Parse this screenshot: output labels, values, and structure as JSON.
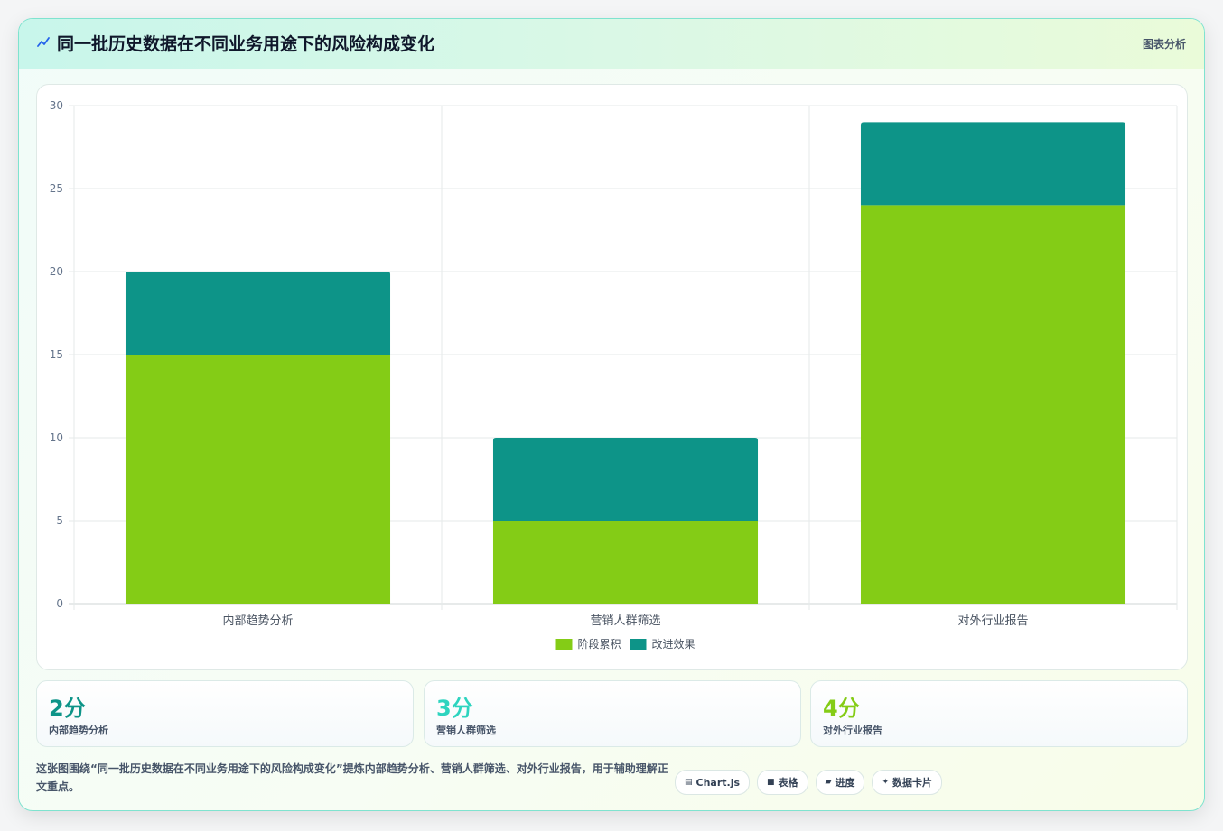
{
  "header": {
    "title": "同一批历史数据在不同业务用途下的风险构成变化",
    "tag": "图表分析"
  },
  "colors": {
    "accent_green": "#84cc16",
    "accent_teal": "#0d9488",
    "accent_cyan": "#2dd4bf"
  },
  "chart_data": {
    "type": "bar",
    "stacked": true,
    "categories": [
      "内部趋势分析",
      "营销人群筛选",
      "对外行业报告"
    ],
    "series": [
      {
        "name": "阶段累积",
        "color": "#84cc16",
        "values": [
          15,
          5,
          24
        ]
      },
      {
        "name": "改进效果",
        "color": "#0d9488",
        "values": [
          5,
          5,
          5
        ]
      }
    ],
    "ylim": [
      0,
      30
    ],
    "yticks": [
      0,
      5,
      10,
      15,
      20,
      25,
      30
    ],
    "grid": true,
    "legend": "bottom"
  },
  "stats": [
    {
      "value": "2分",
      "label": "内部趋势分析",
      "color": "#0d9488"
    },
    {
      "value": "3分",
      "label": "营销人群筛选",
      "color": "#2dd4bf"
    },
    {
      "value": "4分",
      "label": "对外行业报告",
      "color": "#84cc16"
    }
  ],
  "description": "这张图围绕“同一批历史数据在不同业务用途下的风险构成变化”提炼内部趋势分析、营销人群筛选、对外行业报告，用于辅助理解正文重点。",
  "chips": [
    {
      "icon": "▤",
      "label": "Chart.js",
      "icon_name": "chart-icon"
    },
    {
      "icon": "■",
      "label": "表格",
      "icon_name": "table-icon"
    },
    {
      "icon": "▰",
      "label": "进度",
      "icon_name": "progress-icon"
    },
    {
      "icon": "✦",
      "label": "数据卡片",
      "icon_name": "sparkle-icon"
    }
  ]
}
